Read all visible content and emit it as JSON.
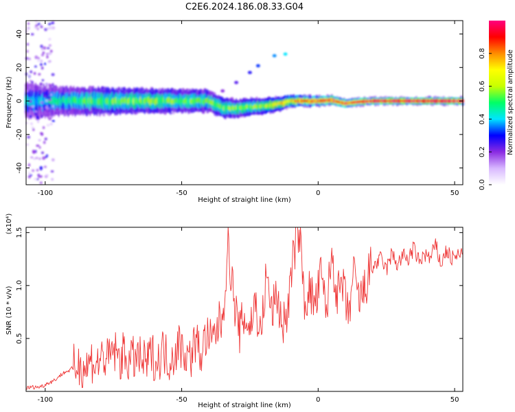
{
  "title": "C2E6.2024.186.08.33.G04",
  "chart_data": [
    {
      "type": "heatmap",
      "xlabel": "Height of straight line (km)",
      "ylabel": "Frequency (Hz)",
      "xlim": [
        -107,
        53
      ],
      "ylim": [
        -50,
        48
      ],
      "x_ticks": [
        -100,
        -50,
        0,
        50
      ],
      "x_tick_labels": [
        "-100",
        "-50",
        "0",
        "50"
      ],
      "y_ticks": [
        -40,
        -20,
        0,
        20,
        40
      ],
      "y_tick_labels": [
        "-40",
        "-20",
        "0",
        "20",
        "40"
      ],
      "colorbar": {
        "label": "Normalized spectral amplitude",
        "range": [
          0,
          1
        ],
        "ticks": [
          0.0,
          0.2,
          0.4,
          0.6,
          0.8
        ],
        "tick_labels": [
          "0.0",
          "0.2",
          "0.4",
          "0.6",
          "0.8"
        ],
        "colormap": [
          "#ffffff",
          "#d8b8ff",
          "#8a2be2",
          "#0000ff",
          "#00e5ff",
          "#00ff66",
          "#c8ff00",
          "#ffff00",
          "#ff8c00",
          "#ff0000",
          "#ff007f"
        ]
      },
      "band": [
        {
          "x": -106,
          "width": 5.0,
          "amp": 0.4
        },
        {
          "x": -100,
          "width": 4.5,
          "amp": 0.42
        },
        {
          "x": -95,
          "width": 4.0,
          "amp": 0.45
        },
        {
          "x": -90,
          "width": 4.0,
          "amp": 0.48
        },
        {
          "x": -85,
          "width": 3.8,
          "amp": 0.5
        },
        {
          "x": -80,
          "width": 3.8,
          "amp": 0.52
        },
        {
          "x": -75,
          "width": 3.6,
          "amp": 0.55
        },
        {
          "x": -70,
          "width": 3.6,
          "amp": 0.55
        },
        {
          "x": -65,
          "width": 3.5,
          "amp": 0.55
        },
        {
          "x": -60,
          "width": 3.4,
          "amp": 0.55
        },
        {
          "x": -55,
          "width": 3.3,
          "amp": 0.55
        },
        {
          "x": -50,
          "width": 3.2,
          "amp": 0.52
        },
        {
          "x": -45,
          "width": 3.2,
          "amp": 0.52
        },
        {
          "x": -40,
          "width": 3.0,
          "amp": 0.52
        },
        {
          "x": -35,
          "width": 2.8,
          "amp": 0.55
        },
        {
          "x": -30,
          "width": 2.6,
          "amp": 0.55
        },
        {
          "x": -25,
          "width": 2.4,
          "amp": 0.57
        },
        {
          "x": -20,
          "width": 2.2,
          "amp": 0.6
        },
        {
          "x": -15,
          "width": 2.0,
          "amp": 0.65
        },
        {
          "x": -10,
          "width": 1.7,
          "amp": 0.75
        },
        {
          "x": -5,
          "width": 1.5,
          "amp": 0.8
        },
        {
          "x": 0,
          "width": 1.4,
          "amp": 0.85
        },
        {
          "x": 5,
          "width": 1.3,
          "amp": 0.88
        },
        {
          "x": 10,
          "width": 1.2,
          "amp": 0.9
        },
        {
          "x": 15,
          "width": 1.1,
          "amp": 0.92
        },
        {
          "x": 20,
          "width": 1.0,
          "amp": 0.95
        },
        {
          "x": 25,
          "width": 1.0,
          "amp": 0.96
        },
        {
          "x": 30,
          "width": 1.0,
          "amp": 0.97
        },
        {
          "x": 35,
          "width": 1.0,
          "amp": 0.98
        },
        {
          "x": 40,
          "width": 1.0,
          "amp": 0.98
        },
        {
          "x": 45,
          "width": 1.0,
          "amp": 0.99
        },
        {
          "x": 50,
          "width": 1.0,
          "amp": 1.0
        },
        {
          "x": 53,
          "width": 1.0,
          "amp": 1.0
        }
      ],
      "band_center": [
        {
          "x": -107,
          "y": 0.0
        },
        {
          "x": -40,
          "y": 0.0
        },
        {
          "x": -35,
          "y": -4.0
        },
        {
          "x": -30,
          "y": -4.5
        },
        {
          "x": -25,
          "y": -3.5
        },
        {
          "x": -20,
          "y": -3.0
        },
        {
          "x": -15,
          "y": -2.0
        },
        {
          "x": -10,
          "y": 0.0
        },
        {
          "x": 0,
          "y": 0.0
        },
        {
          "x": 5,
          "y": 0.5
        },
        {
          "x": 10,
          "y": -1.5
        },
        {
          "x": 15,
          "y": -0.5
        },
        {
          "x": 20,
          "y": 0.0
        },
        {
          "x": 53,
          "y": 0.0
        }
      ],
      "side_streak": [
        {
          "x": -35,
          "y": 6
        },
        {
          "x": -30,
          "y": 11
        },
        {
          "x": -25,
          "y": 17
        },
        {
          "x": -22,
          "y": 21
        },
        {
          "x": -16,
          "y": 27
        },
        {
          "x": -12,
          "y": 28
        }
      ]
    },
    {
      "type": "line",
      "xlabel": "Height of straight line (km)",
      "ylabel": "SNR (10 * v/v)",
      "y_multiplier_label": "(x10⁴)",
      "xlim": [
        -107,
        53
      ],
      "ylim": [
        0,
        1.55
      ],
      "x_ticks": [
        -100,
        -50,
        0,
        50
      ],
      "x_tick_labels": [
        "-100",
        "-50",
        "0",
        "50"
      ],
      "y_ticks": [
        0.5,
        1.0,
        1.5
      ],
      "y_tick_labels": [
        "0.5",
        "1.0",
        "1.5"
      ],
      "color": "#ee3333",
      "series": [
        {
          "x": [
            -107,
            -105,
            -103,
            -101,
            -99,
            -97,
            -95,
            -93,
            -91,
            -89,
            -87,
            -85,
            -83,
            -81,
            -79,
            -77,
            -75,
            -73,
            -71,
            -69,
            -67,
            -65,
            -63,
            -61,
            -59,
            -57,
            -55,
            -53,
            -51,
            -49,
            -47,
            -45,
            -43,
            -41,
            -39,
            -37,
            -35,
            -33,
            -31,
            -29,
            -27,
            -25,
            -23,
            -21,
            -19,
            -17,
            -15,
            -13,
            -11,
            -9,
            -7,
            -5,
            -3,
            -1,
            1,
            3,
            5,
            7,
            9,
            11,
            13,
            15,
            17,
            19,
            21,
            23,
            25,
            27,
            29,
            31,
            33,
            35,
            37,
            39,
            41,
            43,
            45,
            47,
            49,
            51,
            53
          ],
          "y": [
            0.03,
            0.04,
            0.04,
            0.05,
            0.08,
            0.1,
            0.14,
            0.18,
            0.2,
            0.24,
            0.26,
            0.22,
            0.3,
            0.25,
            0.34,
            0.28,
            0.4,
            0.3,
            0.35,
            0.28,
            0.32,
            0.3,
            0.25,
            0.36,
            0.26,
            0.4,
            0.3,
            0.34,
            0.45,
            0.38,
            0.3,
            0.48,
            0.35,
            0.52,
            0.45,
            0.6,
            0.7,
            1.4,
            0.9,
            0.55,
            0.7,
            0.6,
            0.85,
            0.5,
            1.1,
            0.75,
            0.9,
            0.6,
            0.8,
            1.3,
            1.55,
            0.85,
            0.95,
            0.8,
            1.1,
            0.75,
            1.3,
            0.9,
            1.0,
            0.7,
            1.1,
            0.85,
            0.95,
            1.15,
            1.2,
            1.25,
            1.15,
            1.3,
            1.2,
            1.28,
            1.25,
            1.35,
            1.22,
            1.3,
            1.25,
            1.38,
            1.2,
            1.33,
            1.25,
            1.28,
            1.3
          ]
        }
      ]
    }
  ]
}
